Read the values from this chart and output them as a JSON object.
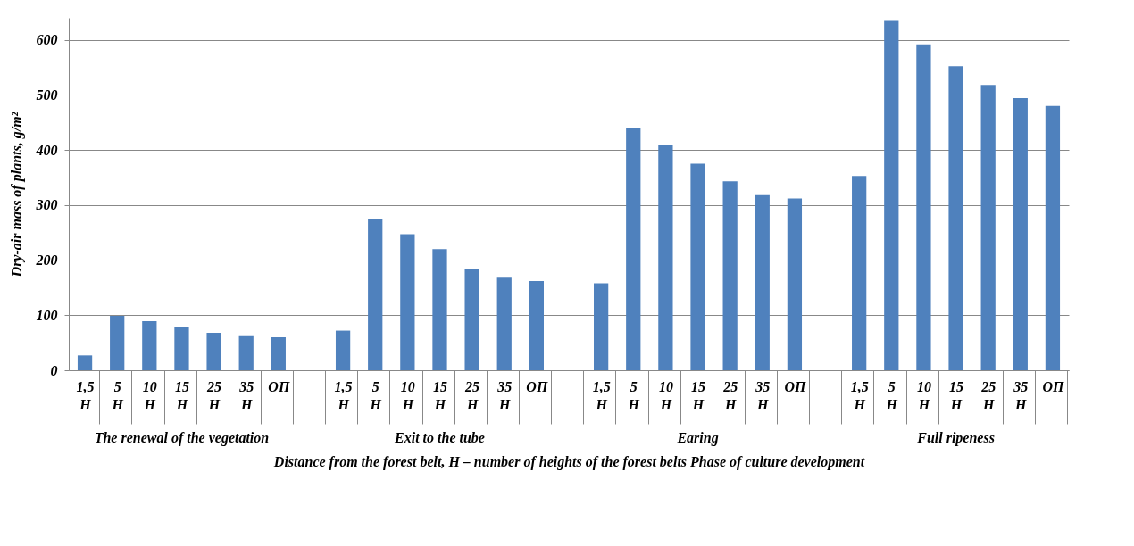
{
  "chart_data": {
    "type": "bar",
    "xlabel": "Distance from the forest belt, H – number of heights of the forest belts Phase of culture development",
    "ylabel": "Dry-air mass of plants, g/m²",
    "categories": [
      "1,5 H",
      "5 H",
      "10 H",
      "15 H",
      "25 H",
      "35 H",
      "ОП",
      null,
      "1,5 H",
      "5 H",
      "10 H",
      "15 H",
      "25 H",
      "35 H",
      "ОП",
      null,
      "1,5 H",
      "5 H",
      "10 H",
      "15 H",
      "25 H",
      "35 H",
      "ОП",
      null,
      "1,5 H",
      "5 H",
      "10 H",
      "15 H",
      "25 H",
      "35 H",
      "ОП"
    ],
    "values": [
      27,
      99,
      89,
      78,
      68,
      62,
      60,
      null,
      72,
      275,
      247,
      220,
      183,
      168,
      162,
      null,
      158,
      440,
      410,
      375,
      343,
      318,
      312,
      null,
      353,
      636,
      592,
      552,
      518,
      494,
      480
    ],
    "color": "#4f81bd",
    "ylim": [
      0,
      640
    ],
    "yticks": [
      0,
      100,
      200,
      300,
      400,
      500,
      600
    ],
    "grid": "y",
    "annotations": [
      "The renewal of the vegetation",
      "Exit to the tube",
      "Earing",
      "Full ripeness"
    ]
  }
}
